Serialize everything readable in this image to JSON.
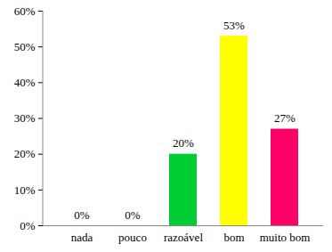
{
  "chart_data": {
    "type": "bar",
    "categories": [
      "nada",
      "pouco",
      "razoável",
      "bom",
      "muito bom"
    ],
    "values": [
      0,
      0,
      20,
      53,
      27
    ],
    "value_labels": [
      "0%",
      "0%",
      "20%",
      "53%",
      "27%"
    ],
    "data_labels": true,
    "colors": [
      "#4f81bd",
      "#c0504d",
      "#00cc33",
      "#ffff00",
      "#ff0066"
    ],
    "ylim": [
      0,
      60
    ],
    "yticks": [
      {
        "value": 0,
        "label": "0%"
      },
      {
        "value": 10,
        "label": "10%"
      },
      {
        "value": 20,
        "label": "20%"
      },
      {
        "value": 30,
        "label": "30%"
      },
      {
        "value": 40,
        "label": "40%"
      },
      {
        "value": 50,
        "label": "50%"
      },
      {
        "value": 60,
        "label": "60%"
      }
    ],
    "grid": false
  }
}
